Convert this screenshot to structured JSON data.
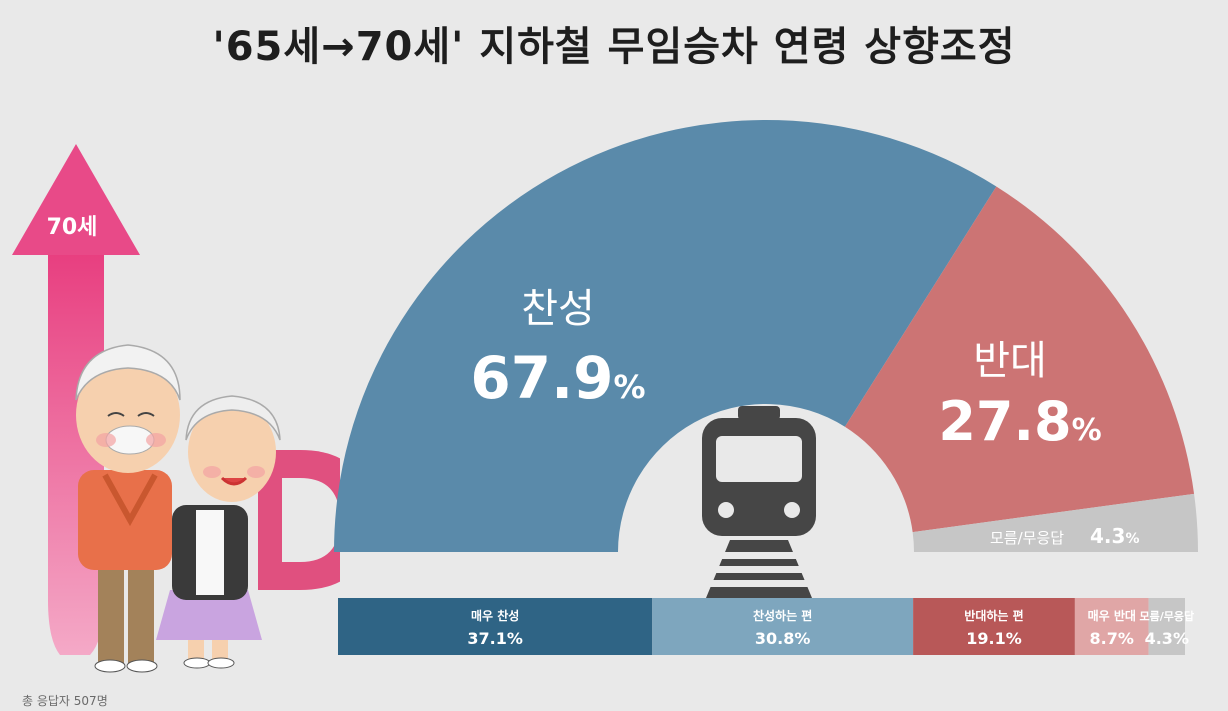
{
  "title": "'65세→70세' 지하철 무임승차 연령 상향조정",
  "arrow_badge": "70세",
  "footnote": "총 응답자 507명",
  "colors": {
    "agree": "#5a8aaa",
    "oppose": "#cc7474",
    "unsure": "#c6c6c6",
    "strong_agree": "#2f6485",
    "mild_agree": "#7ea6be",
    "mild_oppose": "#b85858",
    "strong_oppose": "#e0a6a6",
    "bar_unsure": "#c6c6c6",
    "accent_pink": "#e84a88"
  },
  "chart_data": [
    {
      "type": "pie",
      "style": "half-donut",
      "slices": [
        {
          "key": "agree",
          "label": "찬성",
          "value": 67.9,
          "display": "67.9",
          "unit": "%"
        },
        {
          "key": "oppose",
          "label": "반대",
          "value": 27.8,
          "display": "27.8",
          "unit": "%"
        },
        {
          "key": "unsure",
          "label": "모름/무응답",
          "value": 4.3,
          "display": "4.3",
          "unit": "%"
        }
      ]
    },
    {
      "type": "bar",
      "style": "stacked-100",
      "segments": [
        {
          "key": "strong_agree",
          "label": "매우 찬성",
          "value": 37.1,
          "display": "37.1%"
        },
        {
          "key": "mild_agree",
          "label": "찬성하는 편",
          "value": 30.8,
          "display": "30.8%"
        },
        {
          "key": "mild_oppose",
          "label": "반대하는 편",
          "value": 19.1,
          "display": "19.1%"
        },
        {
          "key": "strong_oppose",
          "label": "매우 반대",
          "value": 8.7,
          "display": "8.7%"
        },
        {
          "key": "bar_unsure",
          "label": "모름/무응답",
          "value": 4.3,
          "display": "4.3%"
        }
      ]
    }
  ]
}
